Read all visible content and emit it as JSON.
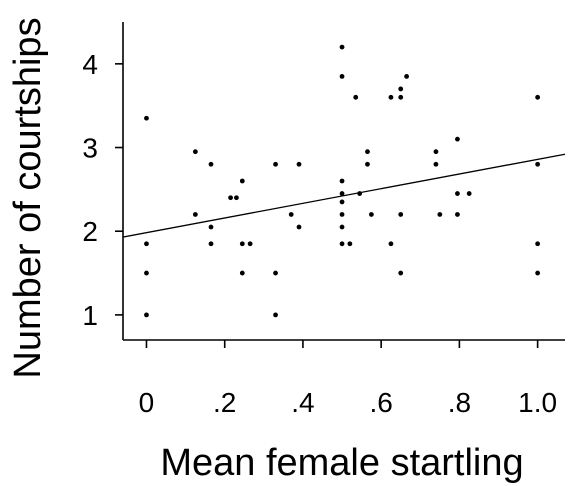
{
  "chart_data": {
    "type": "scatter",
    "title": "",
    "xlabel": "Mean female startling",
    "ylabel": "Number of courtships",
    "xlim": [
      -0.06,
      1.07
    ],
    "ylim": [
      0.7,
      4.5
    ],
    "x_ticks": [
      0,
      0.2,
      0.4,
      0.6,
      0.8,
      1.0
    ],
    "x_tick_labels": [
      "0",
      ".2",
      ".4",
      ".6",
      ".8",
      "1.0"
    ],
    "y_ticks": [
      1,
      2,
      3,
      4
    ],
    "y_tick_labels": [
      "1",
      "2",
      "3",
      "4"
    ],
    "grid": false,
    "legend": "none",
    "points": [
      {
        "x": 0.0,
        "y": 1.0
      },
      {
        "x": 0.0,
        "y": 1.5
      },
      {
        "x": 0.0,
        "y": 1.85
      },
      {
        "x": 0.0,
        "y": 3.35
      },
      {
        "x": 0.125,
        "y": 2.2
      },
      {
        "x": 0.125,
        "y": 2.95
      },
      {
        "x": 0.165,
        "y": 1.85
      },
      {
        "x": 0.165,
        "y": 2.05
      },
      {
        "x": 0.165,
        "y": 2.8
      },
      {
        "x": 0.215,
        "y": 2.4
      },
      {
        "x": 0.23,
        "y": 2.4
      },
      {
        "x": 0.245,
        "y": 1.5
      },
      {
        "x": 0.245,
        "y": 1.85
      },
      {
        "x": 0.245,
        "y": 2.6
      },
      {
        "x": 0.265,
        "y": 1.85
      },
      {
        "x": 0.33,
        "y": 1.0
      },
      {
        "x": 0.33,
        "y": 1.5
      },
      {
        "x": 0.33,
        "y": 2.8
      },
      {
        "x": 0.37,
        "y": 2.2
      },
      {
        "x": 0.39,
        "y": 2.05
      },
      {
        "x": 0.39,
        "y": 2.8
      },
      {
        "x": 0.5,
        "y": 1.85
      },
      {
        "x": 0.5,
        "y": 2.05
      },
      {
        "x": 0.5,
        "y": 2.2
      },
      {
        "x": 0.5,
        "y": 2.35
      },
      {
        "x": 0.5,
        "y": 2.45
      },
      {
        "x": 0.5,
        "y": 2.6
      },
      {
        "x": 0.5,
        "y": 3.85
      },
      {
        "x": 0.5,
        "y": 4.2
      },
      {
        "x": 0.52,
        "y": 1.85
      },
      {
        "x": 0.535,
        "y": 3.6
      },
      {
        "x": 0.545,
        "y": 2.45
      },
      {
        "x": 0.565,
        "y": 2.8
      },
      {
        "x": 0.565,
        "y": 2.95
      },
      {
        "x": 0.575,
        "y": 2.2
      },
      {
        "x": 0.625,
        "y": 1.85
      },
      {
        "x": 0.625,
        "y": 3.6
      },
      {
        "x": 0.65,
        "y": 1.5
      },
      {
        "x": 0.65,
        "y": 2.2
      },
      {
        "x": 0.65,
        "y": 3.6
      },
      {
        "x": 0.65,
        "y": 3.7
      },
      {
        "x": 0.665,
        "y": 3.85
      },
      {
        "x": 0.74,
        "y": 2.8
      },
      {
        "x": 0.74,
        "y": 2.95
      },
      {
        "x": 0.75,
        "y": 2.2
      },
      {
        "x": 0.795,
        "y": 2.2
      },
      {
        "x": 0.795,
        "y": 2.45
      },
      {
        "x": 0.795,
        "y": 3.1
      },
      {
        "x": 0.825,
        "y": 2.45
      },
      {
        "x": 1.0,
        "y": 1.5
      },
      {
        "x": 1.0,
        "y": 1.85
      },
      {
        "x": 1.0,
        "y": 2.8
      },
      {
        "x": 1.0,
        "y": 3.6
      }
    ],
    "fit_line": {
      "x": [
        -0.06,
        1.07
      ],
      "y": [
        1.93,
        2.92
      ]
    }
  }
}
